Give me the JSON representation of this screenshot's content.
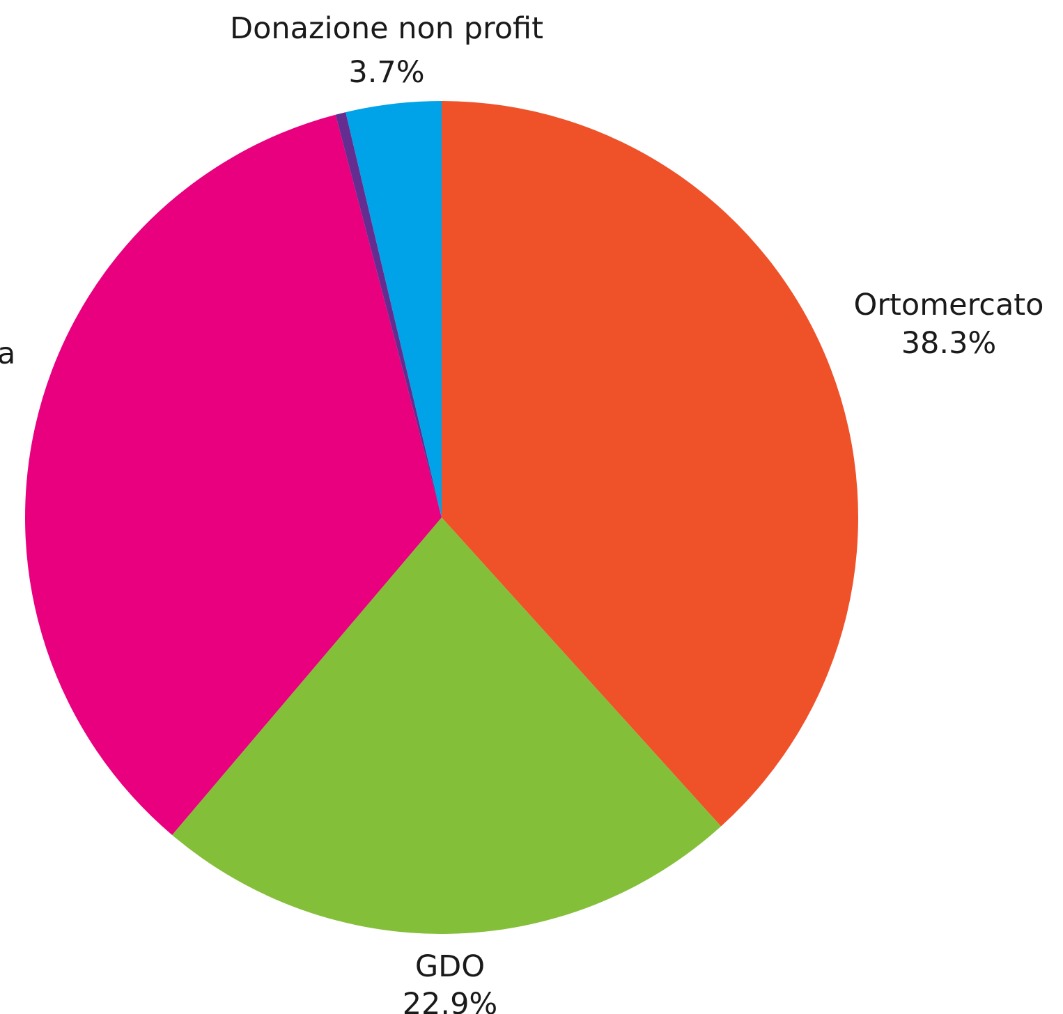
{
  "chart_data": {
    "type": "pie",
    "title": "",
    "slices": [
      {
        "label": "Ortomercato",
        "value": 38.3,
        "display": "38.3%",
        "color": "#ef5129"
      },
      {
        "label": "GDO",
        "value": 22.9,
        "display": "22.9%",
        "color": "#83bf38"
      },
      {
        "label": "",
        "value": 34.7,
        "display": "",
        "color": "#e8007f",
        "label_partial": "a"
      },
      {
        "label": "",
        "value": 0.4,
        "display": "",
        "color": "#662d91"
      },
      {
        "label": "Donazione non profit",
        "value": 3.7,
        "display": "3.7%",
        "color": "#00a3e8"
      }
    ],
    "start_angle": "12 o'clock",
    "direction": "clockwise",
    "legend": "none"
  }
}
